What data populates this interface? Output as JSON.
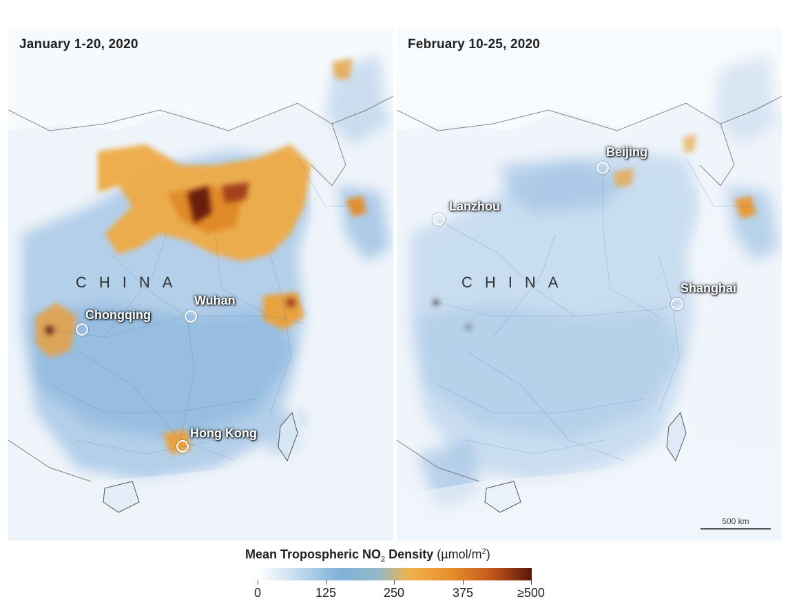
{
  "colorbar": {
    "title_bold": "Mean Tropospheric NO",
    "title_sub": "2",
    "title_bold_end": " Density",
    "units_prefix": "(µmol/m",
    "units_sup": "2",
    "units_suffix": ")",
    "ticks": [
      "0",
      "125",
      "250",
      "375",
      "≥500"
    ],
    "colors": [
      "#ffffff",
      "#cfe1f1",
      "#7fb1da",
      "#efb24e",
      "#e8902c",
      "#c45a1c",
      "#5a1608"
    ]
  },
  "panels": [
    {
      "title": "January 1-20, 2020",
      "country_label": "CHINA",
      "cities": [
        "Chongqing",
        "Wuhan",
        "Hong Kong"
      ]
    },
    {
      "title": "February 10-25, 2020",
      "country_label": "CHINA",
      "cities": [
        "Beijing",
        "Lanzhou",
        "Shanghai"
      ],
      "scale_bar": "500 km"
    }
  ]
}
